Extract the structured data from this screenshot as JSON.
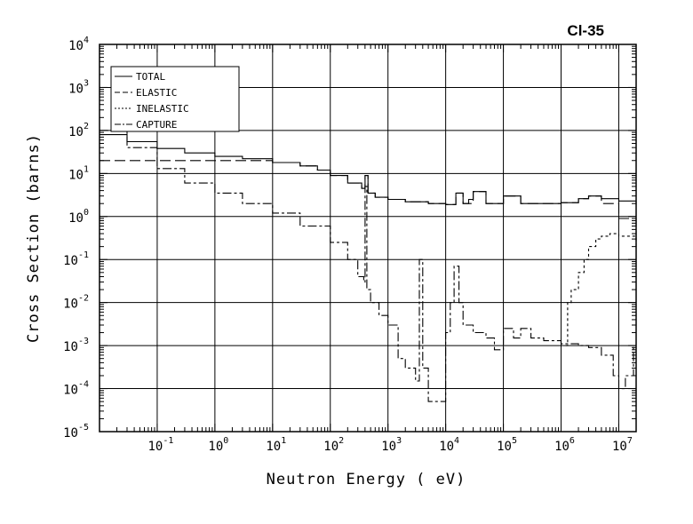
{
  "chart_data": {
    "type": "line",
    "title": "Cl-35",
    "xlabel": "Neutron Energy ( eV)",
    "ylabel": "Cross Section (barns)",
    "x_scale": "log",
    "y_scale": "log",
    "xlim": [
      0.01,
      20000000
    ],
    "ylim": [
      1e-05,
      10000
    ],
    "grid": true,
    "legend_position": "top-left",
    "x_tick_values": [
      0.1,
      1,
      10,
      100,
      1000,
      10000,
      100000,
      1000000,
      10000000
    ],
    "x_tick_labels": [
      {
        "base": "10",
        "exp": "-1"
      },
      {
        "base": "10",
        "exp": "0"
      },
      {
        "base": "10",
        "exp": "1"
      },
      {
        "base": "10",
        "exp": "2"
      },
      {
        "base": "10",
        "exp": "3"
      },
      {
        "base": "10",
        "exp": "4"
      },
      {
        "base": "10",
        "exp": "5"
      },
      {
        "base": "10",
        "exp": "6"
      },
      {
        "base": "10",
        "exp": "7"
      }
    ],
    "y_tick_values": [
      1e-05,
      0.0001,
      0.001,
      0.01,
      0.1,
      1,
      10,
      100,
      1000,
      10000
    ],
    "y_tick_labels": [
      {
        "base": "10",
        "exp": "-5"
      },
      {
        "base": "10",
        "exp": "-4"
      },
      {
        "base": "10",
        "exp": "-3"
      },
      {
        "base": "10",
        "exp": "-2"
      },
      {
        "base": "10",
        "exp": "-1"
      },
      {
        "base": "10",
        "exp": "0"
      },
      {
        "base": "10",
        "exp": "1"
      },
      {
        "base": "10",
        "exp": "2"
      },
      {
        "base": "10",
        "exp": "3"
      },
      {
        "base": "10",
        "exp": "4"
      }
    ],
    "series": [
      {
        "name": "TOTAL",
        "dash": "",
        "x": [
          0.01,
          0.03,
          0.1,
          0.3,
          1,
          3,
          10,
          30,
          60,
          100,
          200,
          350,
          400,
          450,
          600,
          1000,
          2000,
          5000,
          10000,
          15000,
          20000,
          25000,
          30000,
          50000,
          100000,
          200000,
          500000,
          1000000,
          2000000,
          3000000,
          5000000,
          10000000,
          20000000
        ],
        "y": [
          80,
          55,
          38,
          30,
          25,
          22,
          18,
          15,
          12,
          9,
          6,
          4.5,
          9,
          3.5,
          2.8,
          2.5,
          2.2,
          2,
          1.9,
          3.5,
          2.0,
          2.5,
          3.8,
          2.0,
          3.0,
          2.0,
          2.0,
          2.1,
          2.6,
          3.0,
          2.6,
          2.3,
          1.9
        ]
      },
      {
        "name": "ELASTIC",
        "dash": "12,5",
        "x": [
          0.01,
          0.1,
          1,
          10,
          30,
          60,
          100,
          200,
          350,
          400,
          450,
          600,
          1000,
          2000,
          5000,
          10000,
          15000,
          20000,
          30000,
          50000,
          100000,
          200000,
          500000,
          1000000,
          2000000,
          3000000,
          5000000,
          10000000,
          20000000
        ],
        "y": [
          20,
          20,
          20,
          18,
          15,
          12,
          9,
          6,
          4.5,
          9,
          3.5,
          2.8,
          2.5,
          2.2,
          2,
          1.9,
          3.5,
          2.0,
          3.8,
          2.0,
          3.0,
          2.0,
          2.0,
          2.1,
          2.6,
          3.0,
          2.0,
          0.9,
          0.2
        ]
      },
      {
        "name": "INELASTIC",
        "dash": "3,3",
        "x": [
          1200000,
          1300000,
          1500000,
          2000000,
          2500000,
          3000000,
          4000000,
          5000000,
          7000000,
          10000000,
          20000000
        ],
        "y": [
          0.001,
          0.01,
          0.02,
          0.05,
          0.1,
          0.2,
          0.3,
          0.35,
          0.4,
          0.35,
          0.2
        ]
      },
      {
        "name": "CAPTURE",
        "dash": "10,3,3,3",
        "x": [
          0.01,
          0.03,
          0.1,
          0.3,
          1,
          3,
          10,
          30,
          100,
          200,
          300,
          380,
          400,
          430,
          500,
          700,
          1000,
          1500,
          2000,
          3000,
          3500,
          4000,
          5000,
          7000,
          10000,
          12000,
          14000,
          17000,
          20000,
          30000,
          50000,
          70000,
          100000,
          150000,
          200000,
          300000,
          500000,
          1000000,
          2000000,
          3000000,
          5000000,
          8000000,
          10000000,
          13000000,
          18000000
        ],
        "y": [
          100,
          40,
          13,
          6,
          3.5,
          2,
          1.2,
          0.6,
          0.25,
          0.1,
          0.04,
          0.03,
          5,
          0.02,
          0.01,
          0.005,
          0.003,
          0.0005,
          0.0003,
          0.00015,
          0.1,
          0.0003,
          5e-05,
          5e-05,
          0.002,
          0.01,
          0.07,
          0.01,
          0.003,
          0.002,
          0.0015,
          0.0008,
          0.0025,
          0.0015,
          0.0025,
          0.0015,
          0.0013,
          0.0011,
          0.001,
          0.0009,
          0.0006,
          0.0002,
          0.0001,
          0.0002,
          0.001
        ]
      }
    ]
  }
}
